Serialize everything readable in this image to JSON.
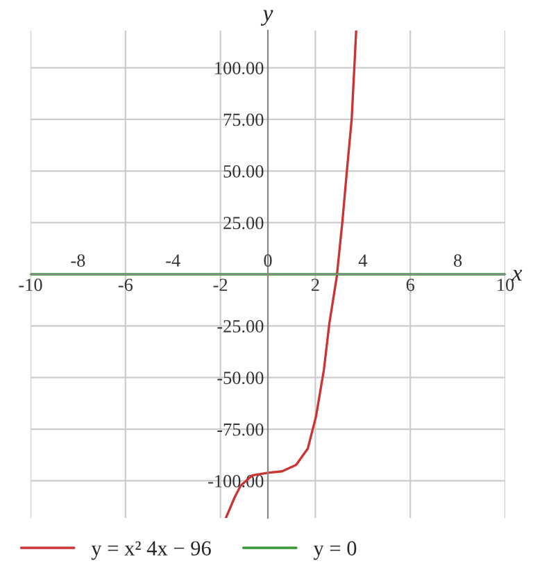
{
  "chart_data": {
    "type": "line",
    "xlabel": "x",
    "ylabel": "y",
    "xlim": [
      -10,
      10
    ],
    "ylim": [
      -118,
      118
    ],
    "xticks": [
      -10,
      -6,
      -2,
      2,
      6,
      10
    ],
    "x2lim": [
      -10,
      10
    ],
    "x2ticks": [
      -8,
      -4,
      0,
      4,
      8
    ],
    "yticks": [
      {
        "value": -100,
        "label": "-100.00"
      },
      {
        "value": -75,
        "label": "-75.00"
      },
      {
        "value": -50,
        "label": "-50.00"
      },
      {
        "value": -25,
        "label": "-25.00"
      },
      {
        "value": 25,
        "label": "25.00"
      },
      {
        "value": 50,
        "label": "50.00"
      },
      {
        "value": 75,
        "label": "75.00"
      },
      {
        "value": 100,
        "label": "100.00"
      }
    ],
    "grid": true,
    "legend": "bottom",
    "marker": "none",
    "line_style": "solid",
    "series": [
      {
        "name": "y = x² 4x − 96",
        "color": "#cc3333",
        "x": [
          -1.77,
          -1.4,
          -1.15,
          -0.66,
          0.0,
          0.6,
          1.19,
          1.68,
          2.03,
          2.36,
          2.59,
          2.9,
          3.14,
          3.33,
          3.53,
          3.64,
          3.72
        ],
        "values": [
          -118,
          -108,
          -102.4,
          -97.4,
          -96.1,
          -95.4,
          -92.3,
          -84.4,
          -68.7,
          -46.2,
          -23.8,
          -1.3,
          25.6,
          50.3,
          75,
          99.7,
          118
        ]
      },
      {
        "name": "y = 0",
        "color": "#339933",
        "x": [
          -10,
          10
        ],
        "values": [
          0,
          0
        ]
      }
    ]
  }
}
